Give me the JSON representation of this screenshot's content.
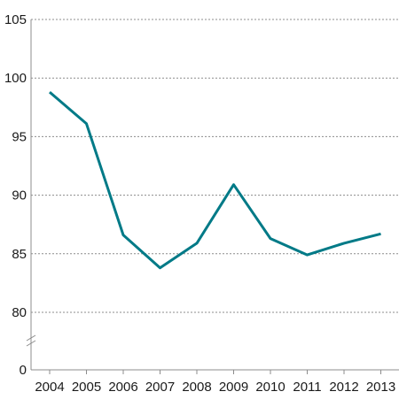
{
  "chart_data": {
    "type": "line",
    "title": "",
    "xlabel": "",
    "ylabel": "",
    "x": [
      "2004",
      "2005",
      "2006",
      "2007",
      "2008",
      "2009",
      "2010",
      "2011",
      "2012",
      "2013"
    ],
    "series": [
      {
        "values": [
          98.8,
          96.1,
          86.6,
          83.8,
          85.9,
          90.9,
          86.3,
          84.9,
          85.9,
          86.7
        ],
        "color": "#007a87"
      }
    ],
    "ylim": [
      80,
      105
    ],
    "y_ticks": [
      "105",
      "100",
      "95",
      "90",
      "85",
      "80"
    ],
    "y_broken_axis_base": "0",
    "y_axis_break": true,
    "grid": "horizontal-dotted",
    "legend": "none"
  }
}
